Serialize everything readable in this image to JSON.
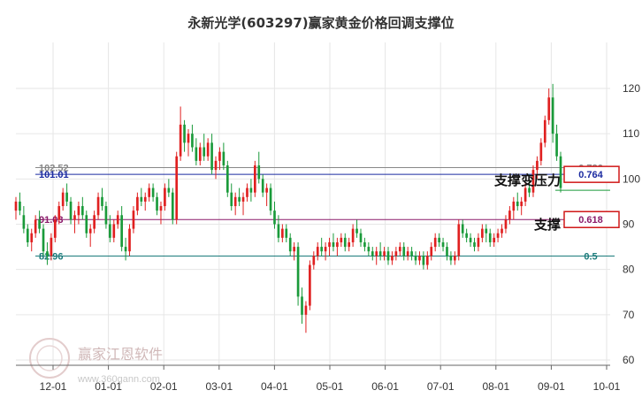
{
  "chart_data": {
    "type": "candlestick",
    "title": "永新光学(603297)赢家黄金价格回调支撑位",
    "xlabel": "",
    "ylabel": "",
    "ylim": [
      60,
      123
    ],
    "grid": true,
    "x_ticks": [
      "12-01",
      "01-01",
      "02-01",
      "03-01",
      "04-01",
      "05-01",
      "06-01",
      "07-01",
      "08-01",
      "09-01",
      "10-01"
    ],
    "y_ticks": [
      60,
      70,
      80,
      90,
      100,
      110,
      120
    ],
    "retracement_levels": [
      {
        "left_label": "102.52",
        "price": 102.52,
        "color": "#888888"
      },
      {
        "left_label": "101.01",
        "price": 101.01,
        "color": "#1a2aa0",
        "right_label": "0.764"
      },
      {
        "left_label": "91.03",
        "price": 91.03,
        "color": "#8a1a6a",
        "right_label": "0.618"
      },
      {
        "left_label": "82.96",
        "price": 82.96,
        "color": "#1a7a7a",
        "right_label": "0.5"
      }
    ],
    "hidden_right_label": "0.786",
    "annotations": [
      "支撑变压力",
      "支撑"
    ],
    "series": [
      {
        "values": [
          [
            93,
            96,
            91,
            95
          ],
          [
            95,
            97,
            92,
            93
          ],
          [
            92,
            94,
            88,
            89
          ],
          [
            89,
            90,
            85,
            86
          ],
          [
            86,
            89,
            84,
            88
          ],
          [
            88,
            92,
            87,
            91
          ],
          [
            91,
            93,
            88,
            89
          ],
          [
            89,
            90,
            83,
            84
          ],
          [
            84,
            86,
            81,
            83
          ],
          [
            83,
            88,
            82,
            87
          ],
          [
            87,
            92,
            86,
            91
          ],
          [
            91,
            95,
            90,
            94
          ],
          [
            94,
            98,
            93,
            97
          ],
          [
            97,
            99,
            94,
            95
          ],
          [
            95,
            96,
            90,
            91
          ],
          [
            91,
            93,
            88,
            92
          ],
          [
            92,
            95,
            90,
            94
          ],
          [
            94,
            96,
            91,
            92
          ],
          [
            92,
            93,
            87,
            88
          ],
          [
            88,
            90,
            85,
            89
          ],
          [
            89,
            93,
            88,
            92
          ],
          [
            92,
            97,
            91,
            96
          ],
          [
            96,
            98,
            93,
            94
          ],
          [
            94,
            95,
            89,
            90
          ],
          [
            90,
            92,
            86,
            87
          ],
          [
            87,
            91,
            86,
            90
          ],
          [
            90,
            93,
            89,
            92
          ],
          [
            92,
            94,
            84,
            85
          ],
          [
            85,
            87,
            82,
            84
          ],
          [
            84,
            90,
            83,
            89
          ],
          [
            89,
            94,
            88,
            93
          ],
          [
            93,
            97,
            92,
            96
          ],
          [
            96,
            98,
            94,
            95
          ],
          [
            95,
            97,
            93,
            96
          ],
          [
            96,
            99,
            95,
            98
          ],
          [
            98,
            99,
            95,
            96
          ],
          [
            96,
            97,
            92,
            93
          ],
          [
            93,
            95,
            90,
            94
          ],
          [
            94,
            99,
            93,
            98
          ],
          [
            98,
            100,
            96,
            97
          ],
          [
            97,
            98,
            90,
            91
          ],
          [
            91,
            106,
            90,
            105
          ],
          [
            105,
            116,
            104,
            112
          ],
          [
            112,
            113,
            106,
            108
          ],
          [
            108,
            111,
            105,
            110
          ],
          [
            110,
            112,
            106,
            107
          ],
          [
            107,
            109,
            103,
            104
          ],
          [
            104,
            108,
            103,
            107
          ],
          [
            107,
            110,
            104,
            105
          ],
          [
            105,
            109,
            104,
            108
          ],
          [
            108,
            110,
            101,
            102
          ],
          [
            102,
            105,
            100,
            104
          ],
          [
            104,
            107,
            102,
            106
          ],
          [
            106,
            108,
            102,
            103
          ],
          [
            103,
            104,
            96,
            97
          ],
          [
            97,
            99,
            93,
            94
          ],
          [
            94,
            97,
            92,
            96
          ],
          [
            96,
            98,
            94,
            95
          ],
          [
            95,
            97,
            92,
            96
          ],
          [
            96,
            99,
            95,
            98
          ],
          [
            98,
            100,
            95,
            97
          ],
          [
            97,
            104,
            96,
            103
          ],
          [
            103,
            106,
            99,
            100
          ],
          [
            100,
            101,
            96,
            97
          ],
          [
            97,
            99,
            94,
            98
          ],
          [
            98,
            99,
            92,
            93
          ],
          [
            93,
            95,
            89,
            90
          ],
          [
            90,
            92,
            86,
            87
          ],
          [
            87,
            90,
            86,
            89
          ],
          [
            89,
            90,
            86,
            87
          ],
          [
            87,
            88,
            83,
            84
          ],
          [
            84,
            86,
            82,
            85
          ],
          [
            85,
            86,
            72,
            74
          ],
          [
            74,
            76,
            68,
            70
          ],
          [
            70,
            73,
            66,
            72
          ],
          [
            72,
            82,
            71,
            81
          ],
          [
            81,
            84,
            80,
            83
          ],
          [
            83,
            86,
            82,
            85
          ],
          [
            85,
            87,
            83,
            84
          ],
          [
            84,
            86,
            82,
            85
          ],
          [
            85,
            87,
            83,
            86
          ],
          [
            86,
            88,
            84,
            85
          ],
          [
            85,
            87,
            83,
            86
          ],
          [
            86,
            88,
            85,
            87
          ],
          [
            87,
            88,
            84,
            85
          ],
          [
            85,
            87,
            84,
            86
          ],
          [
            86,
            90,
            85,
            89
          ],
          [
            89,
            91,
            87,
            88
          ],
          [
            88,
            89,
            85,
            86
          ],
          [
            86,
            87,
            84,
            85
          ],
          [
            85,
            86,
            83,
            84
          ],
          [
            84,
            85,
            82,
            83
          ],
          [
            83,
            85,
            81,
            84
          ],
          [
            84,
            86,
            82,
            83
          ],
          [
            83,
            85,
            82,
            84
          ],
          [
            84,
            85,
            81,
            82
          ],
          [
            82,
            84,
            81,
            83
          ],
          [
            83,
            85,
            82,
            84
          ],
          [
            84,
            86,
            83,
            85
          ],
          [
            85,
            86,
            82,
            83
          ],
          [
            83,
            85,
            82,
            84
          ],
          [
            84,
            85,
            82,
            83
          ],
          [
            83,
            84,
            81,
            82
          ],
          [
            82,
            84,
            81,
            83
          ],
          [
            83,
            84,
            80,
            81
          ],
          [
            81,
            84,
            80,
            83
          ],
          [
            83,
            86,
            82,
            85
          ],
          [
            85,
            88,
            84,
            87
          ],
          [
            87,
            88,
            85,
            86
          ],
          [
            86,
            87,
            84,
            85
          ],
          [
            85,
            86,
            82,
            83
          ],
          [
            83,
            84,
            81,
            82
          ],
          [
            82,
            84,
            81,
            83
          ],
          [
            83,
            91,
            82,
            90
          ],
          [
            90,
            91,
            87,
            88
          ],
          [
            88,
            89,
            86,
            87
          ],
          [
            87,
            88,
            85,
            86
          ],
          [
            86,
            87,
            84,
            85
          ],
          [
            85,
            88,
            84,
            87
          ],
          [
            87,
            90,
            86,
            89
          ],
          [
            89,
            90,
            86,
            88
          ],
          [
            88,
            89,
            85,
            86
          ],
          [
            86,
            88,
            85,
            87
          ],
          [
            87,
            89,
            86,
            88
          ],
          [
            88,
            90,
            87,
            89
          ],
          [
            89,
            92,
            88,
            91
          ],
          [
            91,
            94,
            90,
            93
          ],
          [
            93,
            96,
            91,
            95
          ],
          [
            95,
            97,
            93,
            94
          ],
          [
            94,
            96,
            92,
            95
          ],
          [
            95,
            99,
            94,
            98
          ],
          [
            98,
            101,
            96,
            97
          ],
          [
            97,
            103,
            96,
            102
          ],
          [
            102,
            105,
            100,
            104
          ],
          [
            104,
            109,
            103,
            108
          ],
          [
            108,
            114,
            107,
            113
          ],
          [
            113,
            120,
            112,
            118
          ],
          [
            118,
            121,
            108,
            110
          ],
          [
            110,
            112,
            104,
            105
          ],
          [
            105,
            106,
            97,
            98
          ]
        ]
      }
    ]
  },
  "watermark": {
    "brand": "赢家江恩软件",
    "site": "www.360gann.com"
  },
  "colors": {
    "up": "#e02020",
    "down": "#1a9a3a",
    "grid": "#e6e6e6"
  }
}
